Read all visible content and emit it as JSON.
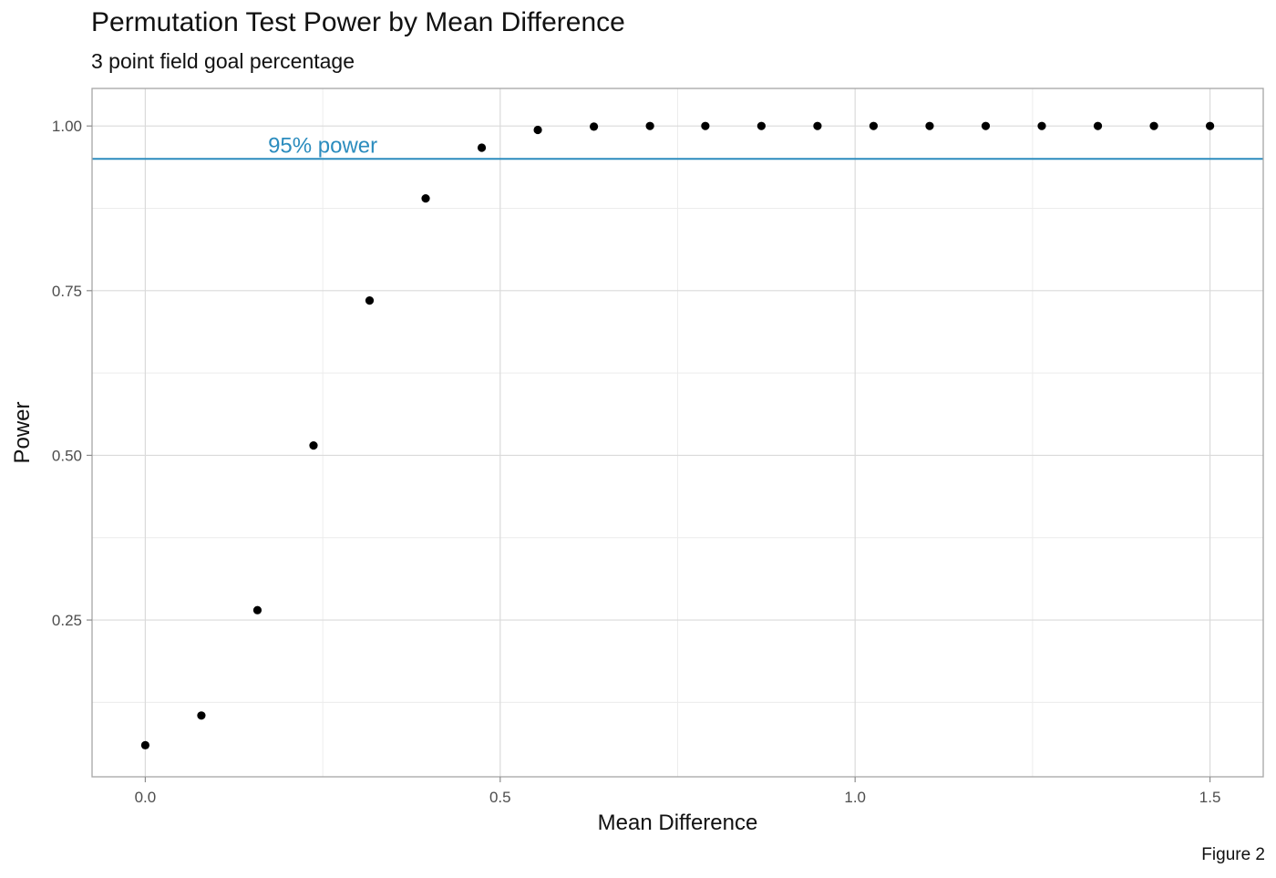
{
  "chart_data": {
    "type": "scatter",
    "title": "Permutation Test Power by Mean Difference",
    "subtitle": "3 point field goal percentage",
    "xlabel": "Mean Difference",
    "ylabel": "Power",
    "caption": "Figure 2",
    "xlim": [
      -0.075,
      1.575
    ],
    "ylim": [
      0.012,
      1.057
    ],
    "x_ticks": [
      0.0,
      0.5,
      1.0,
      1.5
    ],
    "x_tick_labels": [
      "0.0",
      "0.5",
      "1.0",
      "1.5"
    ],
    "y_ticks": [
      0.25,
      0.5,
      0.75,
      1.0
    ],
    "y_tick_labels": [
      "0.25",
      "0.50",
      "0.75",
      "1.00"
    ],
    "grid": true,
    "points": [
      {
        "x": 0.0,
        "y": 0.06
      },
      {
        "x": 0.079,
        "y": 0.105
      },
      {
        "x": 0.158,
        "y": 0.265
      },
      {
        "x": 0.237,
        "y": 0.515
      },
      {
        "x": 0.316,
        "y": 0.735
      },
      {
        "x": 0.395,
        "y": 0.89
      },
      {
        "x": 0.474,
        "y": 0.967
      },
      {
        "x": 0.553,
        "y": 0.994
      },
      {
        "x": 0.632,
        "y": 0.999
      },
      {
        "x": 0.711,
        "y": 1.0
      },
      {
        "x": 0.789,
        "y": 1.0
      },
      {
        "x": 0.868,
        "y": 1.0
      },
      {
        "x": 0.947,
        "y": 1.0
      },
      {
        "x": 1.026,
        "y": 1.0
      },
      {
        "x": 1.105,
        "y": 1.0
      },
      {
        "x": 1.184,
        "y": 1.0
      },
      {
        "x": 1.263,
        "y": 1.0
      },
      {
        "x": 1.342,
        "y": 1.0
      },
      {
        "x": 1.421,
        "y": 1.0
      },
      {
        "x": 1.5,
        "y": 1.0
      }
    ],
    "reference_line": {
      "y": 0.95,
      "label": "95% power",
      "label_x": 0.25,
      "color": "#2b8cbe"
    },
    "point_color": "#000000"
  }
}
